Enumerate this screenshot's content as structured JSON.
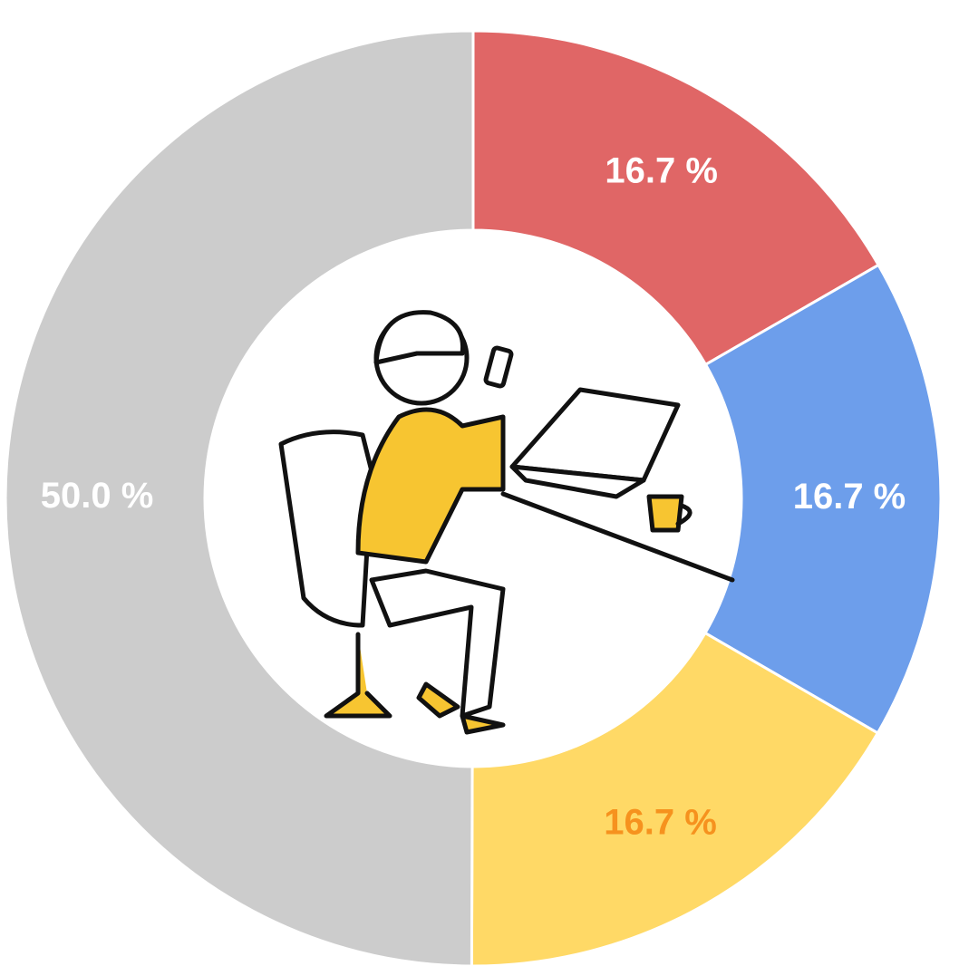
{
  "chart_data": {
    "type": "donut",
    "values": [
      16.7,
      16.7,
      16.7,
      50.0
    ],
    "value_labels": [
      "16.7 %",
      "16.7 %",
      "16.7 %",
      "50.0 %"
    ],
    "colors": [
      "#e06666",
      "#6d9eeb",
      "#ffd966",
      "#cccccc"
    ],
    "label_colors": [
      "#ffffff",
      "#ffffff",
      "#f6921e",
      "#ffffff"
    ]
  }
}
